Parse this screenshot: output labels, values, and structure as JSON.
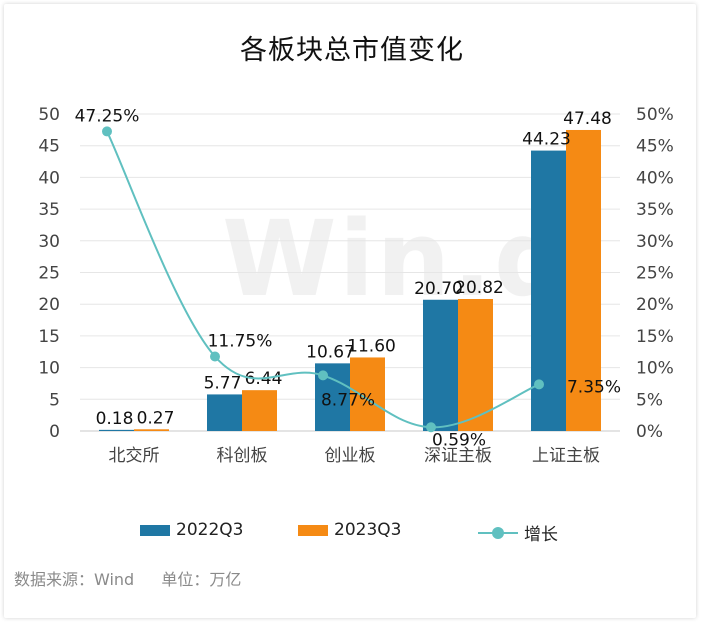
{
  "title": "各板块总市值变化",
  "footer": {
    "source": "数据来源：Wind",
    "unit": "单位：万亿"
  },
  "watermark": "Win.d",
  "colors": {
    "s2022": "#1f77a4",
    "s2023": "#f58a14",
    "growth": "#60c0c0"
  },
  "chart_data": {
    "type": "bar",
    "categories": [
      "北交所",
      "科创板",
      "创业板",
      "深证主板",
      "上证主板"
    ],
    "series": [
      {
        "name": "2022Q3",
        "values": [
          0.18,
          5.77,
          10.67,
          20.7,
          44.23
        ]
      },
      {
        "name": "2023Q3",
        "values": [
          0.27,
          6.44,
          11.6,
          20.82,
          47.48
        ]
      }
    ],
    "line_series": {
      "name": "增长",
      "values": [
        47.25,
        11.75,
        8.77,
        0.59,
        7.35
      ],
      "unit": "%"
    },
    "value_labels_2022": [
      "0.18",
      "5.77",
      "10.67",
      "20.70",
      "44.23"
    ],
    "value_labels_2023": [
      "0.27",
      "6.44",
      "11.60",
      "20.82",
      "47.48"
    ],
    "growth_labels": [
      "47.25%",
      "11.75%",
      "8.77%",
      "0.59%",
      "7.35%"
    ],
    "ylim_left": [
      0,
      50
    ],
    "ylim_right": [
      0,
      50
    ],
    "left_ticks": [
      "0",
      "5",
      "10",
      "15",
      "20",
      "25",
      "30",
      "35",
      "40",
      "45",
      "50"
    ],
    "right_ticks": [
      "0%",
      "5%",
      "10%",
      "15%",
      "20%",
      "25%",
      "30%",
      "35%",
      "40%",
      "45%",
      "50%"
    ],
    "grid": true,
    "legend_position": "bottom"
  },
  "legend": {
    "items": [
      "2022Q3",
      "2023Q3",
      "增长"
    ]
  }
}
